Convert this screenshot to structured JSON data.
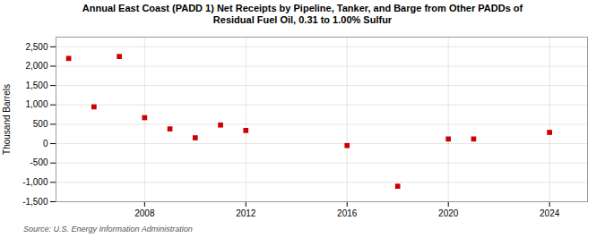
{
  "chart_data": {
    "type": "scatter",
    "title": "Annual East Coast (PADD 1) Net Receipts by Pipeline, Tanker, and Barge from Other PADDs of\nResidual Fuel Oil, 0.31 to 1.00% Sulfur",
    "ylabel": "Thousand Barrels",
    "source": "Source: U.S. Energy Information Administration",
    "x": [
      2005,
      2006,
      2007,
      2008,
      2009,
      2010,
      2011,
      2012,
      2016,
      2018,
      2020,
      2021,
      2024
    ],
    "values": [
      2200,
      950,
      2250,
      670,
      380,
      150,
      480,
      340,
      -50,
      -1100,
      120,
      120,
      290
    ],
    "color": "#cc0000",
    "marker": "square",
    "xlim": [
      2004.5,
      2025.5
    ],
    "xticks": [
      2008,
      2012,
      2016,
      2020,
      2024
    ],
    "ylim": [
      -1500,
      2750
    ],
    "yticks": [
      {
        "value": -1500,
        "label": "-1,500"
      },
      {
        "value": -1000,
        "label": "-1,000"
      },
      -500,
      0,
      500,
      {
        "value": 1000,
        "label": "1,000"
      },
      {
        "value": 1500,
        "label": "1,500"
      },
      {
        "value": 2000,
        "label": "2,000"
      },
      {
        "value": 2500,
        "label": "2,500"
      }
    ],
    "grid": true
  }
}
